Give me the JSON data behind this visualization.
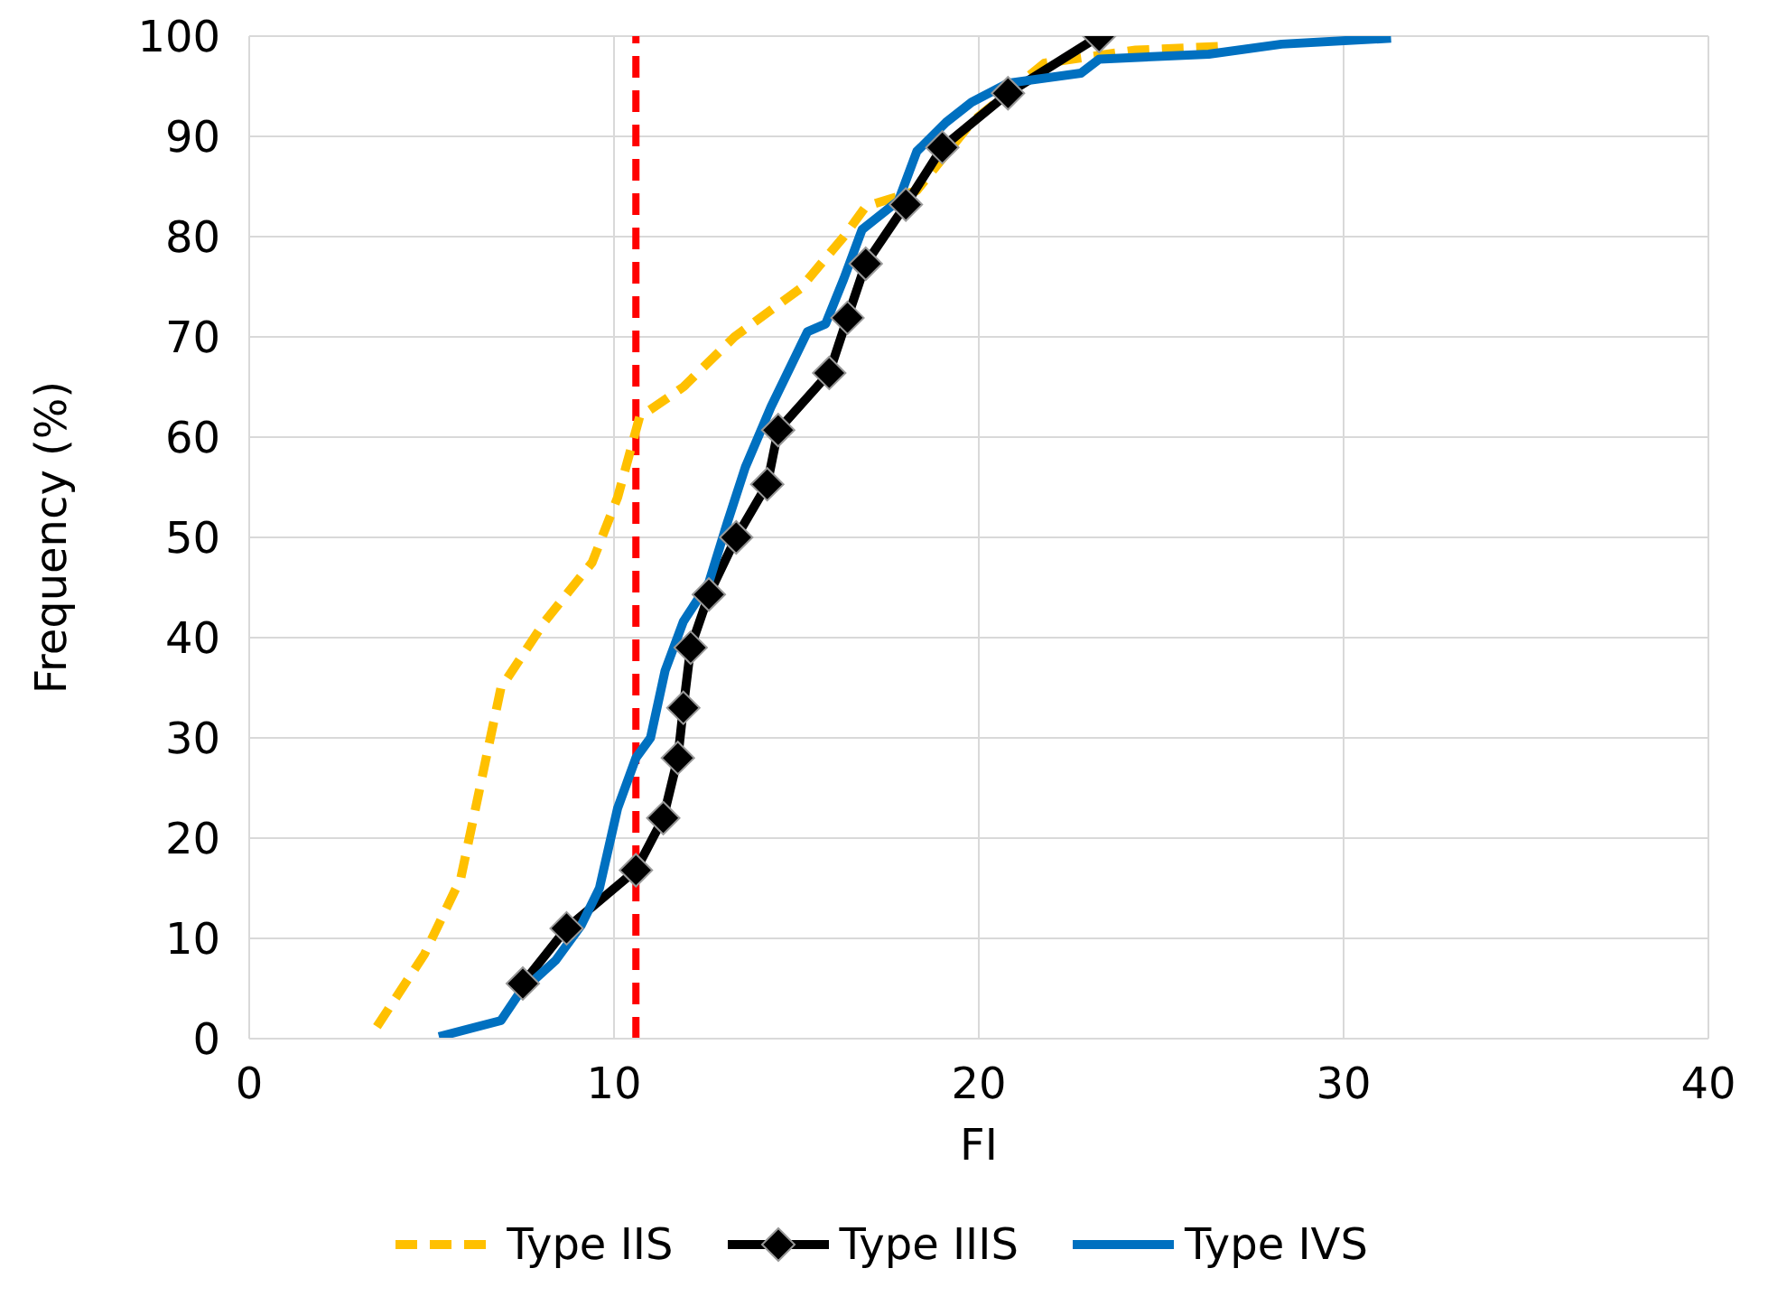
{
  "chart_data": {
    "type": "line",
    "xlabel": "FI",
    "ylabel": "Frequency (%)",
    "xlim": [
      0,
      40
    ],
    "xticks": [
      0,
      10,
      20,
      30,
      40
    ],
    "ylim": [
      0,
      100
    ],
    "yticks": [
      0,
      10,
      20,
      30,
      40,
      50,
      60,
      70,
      80,
      90,
      100
    ],
    "grid": true,
    "legend": "bottom",
    "ref_lines": [
      {
        "axis": "x",
        "value": 10.6,
        "color": "#ff0000",
        "line_style": "dashed"
      }
    ],
    "series": [
      {
        "name": "Type IIS",
        "color": "#ffc000",
        "line_style": "dashed",
        "marker": "none",
        "x": [
          3.5,
          4.8,
          5.8,
          6.9,
          8.1,
          9.4,
          10.1,
          10.7,
          11.9,
          13.3,
          15.1,
          16.3,
          16.9,
          18.3,
          19.8,
          21.8,
          24.3,
          26.8
        ],
        "values": [
          1.2,
          8.4,
          16,
          35,
          41.6,
          47.5,
          54,
          62,
          65,
          70,
          74.8,
          80,
          83,
          84.6,
          91.4,
          97.3,
          98.6,
          99
        ]
      },
      {
        "name": "Type IIIS",
        "color": "#000000",
        "line_style": "solid",
        "marker": "diamond",
        "x": [
          7.5,
          8.7,
          10.6,
          11.35,
          11.75,
          11.9,
          12.1,
          12.6,
          13.35,
          14.2,
          14.5,
          15.9,
          16.4,
          16.9,
          18.0,
          19.0,
          20.8,
          23.3
        ],
        "values": [
          5.5,
          11,
          16.8,
          22,
          28,
          33,
          39,
          44.3,
          50,
          55.3,
          60.7,
          66.4,
          71.9,
          77.3,
          83.2,
          88.9,
          94.3,
          100
        ]
      },
      {
        "name": "Type IVS",
        "color": "#0070c0",
        "line_style": "solid",
        "marker": "none",
        "x": [
          5.2,
          6.9,
          7.4,
          8.4,
          9.1,
          9.6,
          10.1,
          10.6,
          11,
          11.4,
          11.9,
          12.6,
          13.1,
          13.6,
          14.3,
          15.3,
          15.8,
          16.3,
          16.8,
          17.8,
          18.3,
          19.1,
          19.8,
          20.8,
          22.8,
          23.3,
          26.3,
          28.3,
          31.3
        ],
        "values": [
          0.2,
          1.8,
          4.5,
          7.8,
          11.3,
          15,
          23,
          28,
          30,
          36.7,
          41.6,
          45.5,
          51.4,
          57,
          63,
          70.5,
          71.3,
          75.8,
          80.7,
          83.6,
          88.5,
          91.4,
          93.4,
          95.3,
          96.3,
          97.7,
          98.2,
          99.2,
          99.8
        ]
      }
    ]
  }
}
